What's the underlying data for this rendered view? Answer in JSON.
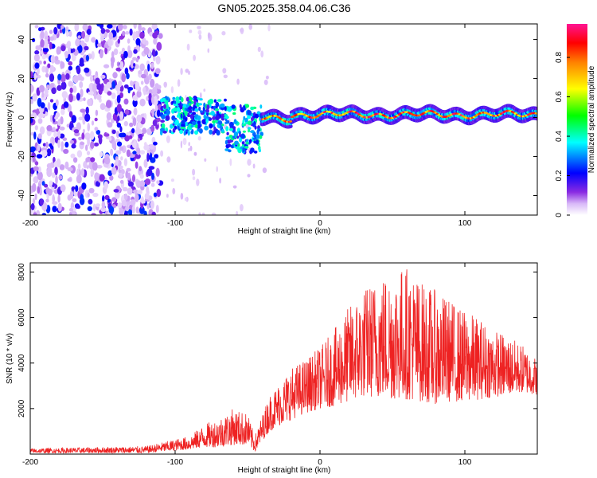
{
  "figure": {
    "title": "GN05.2025.358.04.06.C36"
  },
  "chart_data": [
    {
      "type": "heatmap",
      "title": "GN05.2025.358.04.06.C36",
      "xlabel": "Height of straight line (km)",
      "ylabel": "Frequency (Hz)",
      "xlim": [
        -200,
        150
      ],
      "ylim": [
        -50,
        48
      ],
      "xticks": [
        -200,
        -100,
        0,
        100
      ],
      "yticks": [
        -40,
        -20,
        0,
        20,
        40
      ],
      "colorbar": {
        "label": "Normalized spectral amplitude",
        "range": [
          0.0,
          0.97
        ],
        "ticks": [
          0.0,
          0.2,
          0.4,
          0.6,
          0.8
        ],
        "colormap": [
          "#ffffff",
          "#d8b8f8",
          "#8a2be2",
          "#0000ff",
          "#00ffff",
          "#00ff00",
          "#ffff00",
          "#ff8000",
          "#ff0000",
          "#ff1493"
        ]
      },
      "regions": [
        {
          "name": "noise",
          "x_range": [
            -200,
            -110
          ],
          "freq_range": [
            -50,
            48
          ],
          "amplitude_range": [
            0.05,
            0.25
          ]
        },
        {
          "name": "transition",
          "x_range": [
            -110,
            -40
          ],
          "freq_range": [
            -20,
            15
          ],
          "amplitude_range": [
            0.15,
            0.45
          ]
        },
        {
          "name": "signal",
          "x_range": [
            -40,
            150
          ],
          "center_freq_hz": 1.5,
          "amplitude_range": [
            0.6,
            0.97
          ]
        }
      ]
    },
    {
      "type": "line",
      "xlabel": "Height of straight line (km)",
      "ylabel": "SNR (10 * v/v)",
      "xlim": [
        -200,
        150
      ],
      "ylim": [
        0,
        8400
      ],
      "xticks": [
        -200,
        -100,
        0,
        100
      ],
      "yticks": [
        2000,
        4000,
        6000,
        8000
      ],
      "color": "#ee2222",
      "envelope": {
        "x": [
          -200,
          -120,
          -110,
          -90,
          -80,
          -70,
          -60,
          -50,
          -45,
          -35,
          -30,
          -20,
          -10,
          0,
          10,
          20,
          30,
          40,
          50,
          60,
          70,
          80,
          90,
          100,
          110,
          120,
          130,
          140,
          150
        ],
        "low": [
          50,
          50,
          100,
          200,
          300,
          300,
          400,
          400,
          100,
          1000,
          1200,
          1500,
          1800,
          2000,
          2100,
          2300,
          2500,
          2500,
          2400,
          2400,
          2300,
          2200,
          2300,
          2300,
          2400,
          2500,
          2600,
          2700,
          2600
        ],
        "high": [
          250,
          350,
          500,
          800,
          1300,
          1600,
          2000,
          1800,
          800,
          2600,
          3000,
          3800,
          4200,
          4700,
          5500,
          6500,
          7300,
          7800,
          8200,
          8300,
          7600,
          7200,
          6800,
          6300,
          6000,
          5500,
          5200,
          4800,
          4200
        ]
      }
    }
  ]
}
